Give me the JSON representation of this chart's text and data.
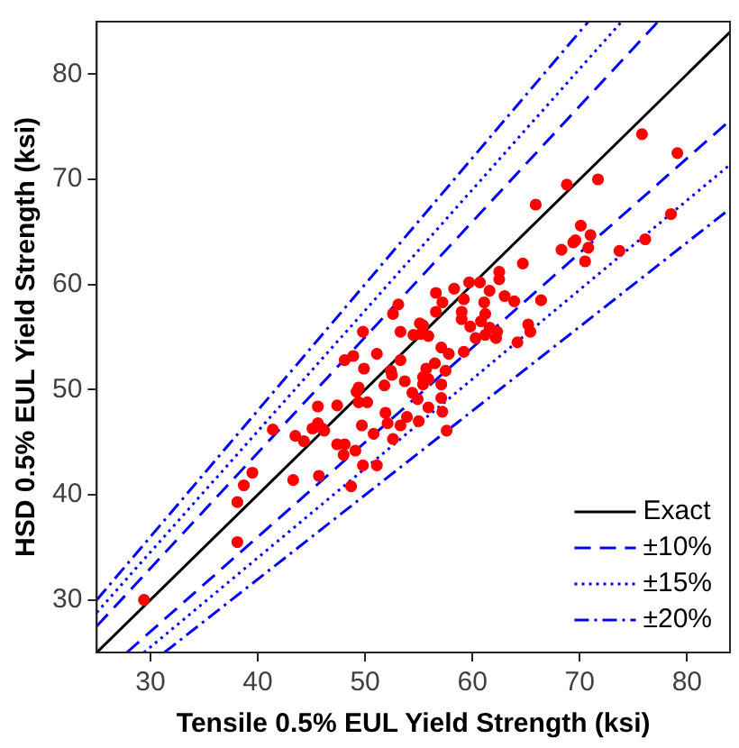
{
  "chart_data": {
    "type": "scatter",
    "xlabel": "Tensile 0.5% EUL Yield Strength (ksi)",
    "ylabel": "HSD 0.5% EUL Yield Strength (ksi)",
    "xlim": [
      25,
      84
    ],
    "ylim": [
      25,
      85
    ],
    "xticks": [
      30,
      40,
      50,
      60,
      70,
      80
    ],
    "yticks": [
      30,
      40,
      50,
      60,
      70,
      80
    ],
    "legend": "bottom right",
    "series": [
      {
        "marker": "circle",
        "color": "#ff0000",
        "x": [
          75.8,
          79.1,
          68.8,
          71.7,
          65.9,
          78.5,
          70.1,
          71.0,
          69.6,
          69.4,
          76.1,
          68.3,
          70.8,
          73.7,
          70.5,
          64.7,
          62.5,
          62.5,
          60.7,
          59.7,
          58.3,
          56.6,
          61.6,
          63.0,
          63.9,
          66.4,
          59.2,
          57.2,
          61.1,
          53.1,
          56.6,
          59.0,
          61.2,
          52.6,
          59.0,
          55.1,
          55.4,
          60.8,
          53.3,
          54.5,
          55.2,
          55.9,
          49.8,
          59.8,
          61.6,
          62.3,
          61.2,
          60.3,
          62.2,
          64.2,
          65.2,
          65.4,
          57.1,
          59.2,
          57.8,
          51.1,
          48.1,
          48.9,
          53.3,
          49.9,
          55.7,
          56.5,
          57.5,
          52.4,
          52.5,
          55.4,
          53.7,
          55.9,
          57.1,
          51.8,
          49.4,
          49.2,
          55.4,
          54.4,
          54.9,
          57.1,
          49.4,
          50.2,
          47.4,
          45.6,
          55.9,
          57.2,
          51.9,
          53.9,
          55.0,
          45.6,
          49.7,
          52.1,
          45.1,
          46.0,
          46.2,
          53.3,
          57.6,
          41.4,
          43.5,
          44.3,
          50.8,
          52.6,
          47.4,
          48.1,
          49.1,
          48.0,
          49.8,
          51.1,
          45.7,
          43.3,
          39.5,
          38.7,
          48.7,
          38.1,
          38.1,
          29.4
        ],
        "values": [
          74.3,
          72.5,
          69.5,
          70.0,
          67.6,
          66.7,
          65.6,
          64.7,
          64.2,
          64.0,
          64.3,
          63.3,
          63.5,
          63.2,
          62.2,
          62.0,
          61.2,
          60.5,
          60.2,
          60.2,
          59.6,
          59.2,
          59.4,
          58.9,
          58.4,
          58.5,
          58.6,
          58.3,
          58.3,
          58.1,
          57.4,
          57.4,
          57.2,
          57.2,
          56.7,
          56.3,
          56.1,
          56.5,
          55.5,
          55.2,
          55.3,
          55.1,
          55.5,
          56.0,
          55.9,
          55.5,
          55.2,
          54.9,
          54.9,
          54.5,
          56.2,
          55.5,
          54.0,
          53.6,
          53.4,
          53.4,
          52.8,
          53.2,
          52.8,
          52.0,
          52.0,
          52.5,
          51.8,
          51.8,
          51.4,
          51.2,
          50.8,
          51.0,
          50.5,
          50.4,
          50.2,
          49.8,
          50.5,
          49.7,
          49.1,
          49.2,
          48.8,
          48.8,
          48.5,
          48.4,
          48.3,
          47.9,
          47.8,
          47.4,
          47.0,
          46.8,
          46.6,
          46.8,
          46.3,
          46.3,
          46.1,
          46.6,
          46.1,
          46.2,
          45.6,
          45.1,
          45.8,
          45.3,
          44.8,
          44.8,
          44.2,
          43.8,
          42.8,
          42.8,
          41.8,
          41.4,
          42.1,
          40.9,
          40.8,
          39.3,
          35.5,
          30.0
        ]
      },
      {
        "type": "line",
        "name": "Exact",
        "color": "#000000",
        "line_style": "solid",
        "marker": "none",
        "x": [
          25,
          84
        ],
        "values": [
          25,
          84
        ]
      },
      {
        "type": "line",
        "name": "±10%",
        "color": "#0000ff",
        "line_style": "dashed",
        "marker": "none",
        "x": [
          25,
          77.3
        ],
        "values": [
          27.5,
          85
        ]
      },
      {
        "type": "line",
        "color": "#0000ff",
        "line_style": "dashed",
        "marker": "none",
        "x": [
          27.8,
          84
        ],
        "values": [
          25,
          75.6
        ]
      },
      {
        "type": "line",
        "name": "±15%",
        "color": "#0000ff",
        "line_style": "dotted",
        "marker": "none",
        "x": [
          25,
          73.9
        ],
        "values": [
          28.8,
          85
        ]
      },
      {
        "type": "line",
        "color": "#0000ff",
        "line_style": "dotted",
        "marker": "none",
        "x": [
          29.4,
          84
        ],
        "values": [
          25,
          71.4
        ]
      },
      {
        "type": "line",
        "name": "±20%",
        "color": "#0000ff",
        "line_style": "dashdot",
        "marker": "none",
        "x": [
          25,
          70.8
        ],
        "values": [
          30,
          85
        ]
      },
      {
        "type": "line",
        "color": "#0000ff",
        "line_style": "dashdot",
        "marker": "none",
        "x": [
          31.3,
          84
        ],
        "values": [
          25,
          67.2
        ]
      }
    ]
  }
}
